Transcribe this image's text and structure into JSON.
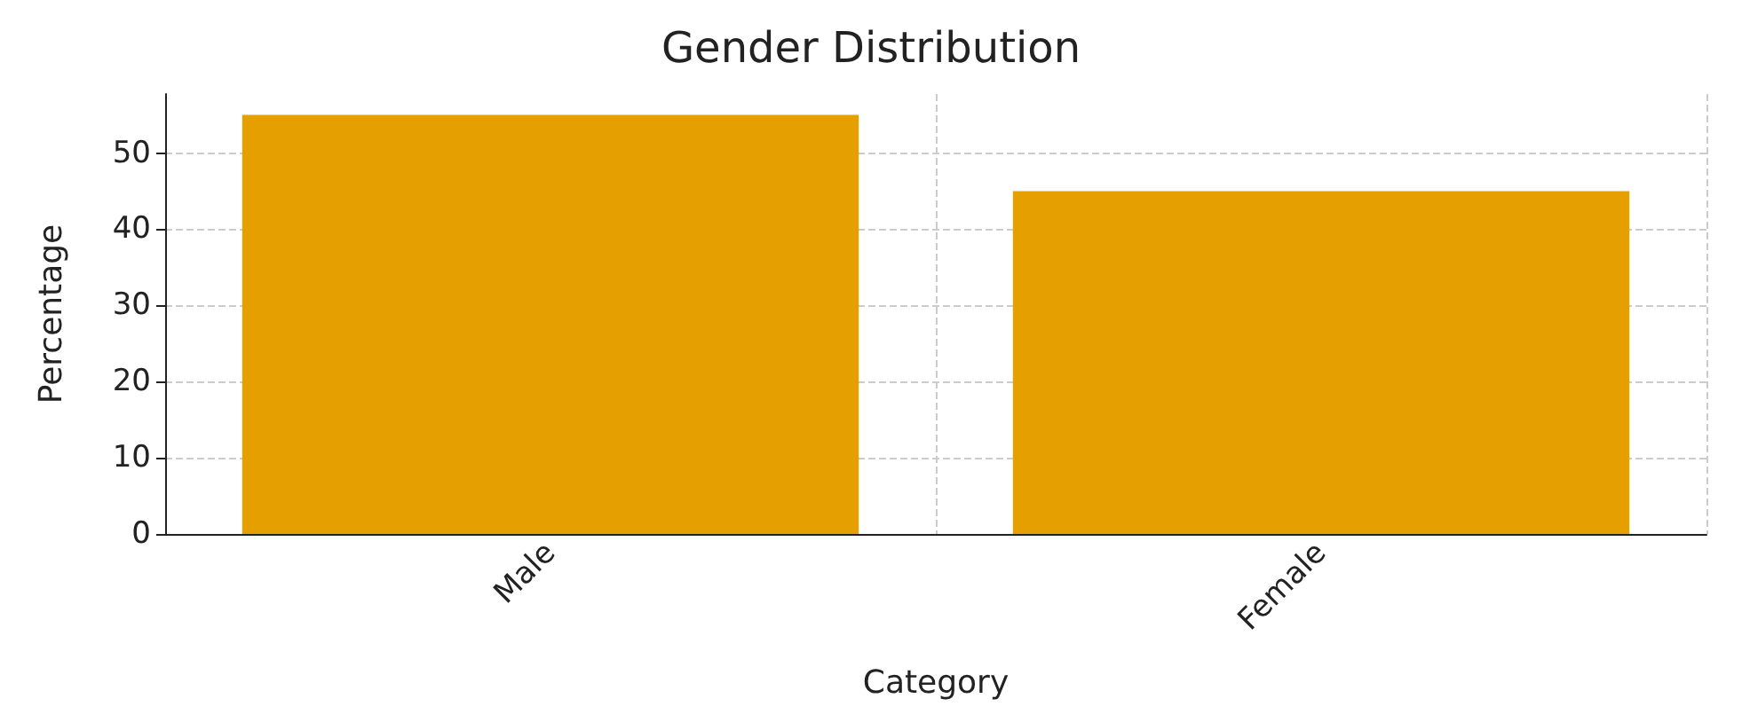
{
  "chart_data": {
    "type": "bar",
    "title": "Gender Distribution",
    "xlabel": "Category",
    "ylabel": "Percentage",
    "categories": [
      "Male",
      "Female"
    ],
    "values": [
      55,
      45
    ],
    "color": "#e5a000",
    "ylim": [
      0,
      57.75
    ],
    "yticks": [
      0,
      10,
      20,
      30,
      40,
      50
    ],
    "grid": true
  }
}
